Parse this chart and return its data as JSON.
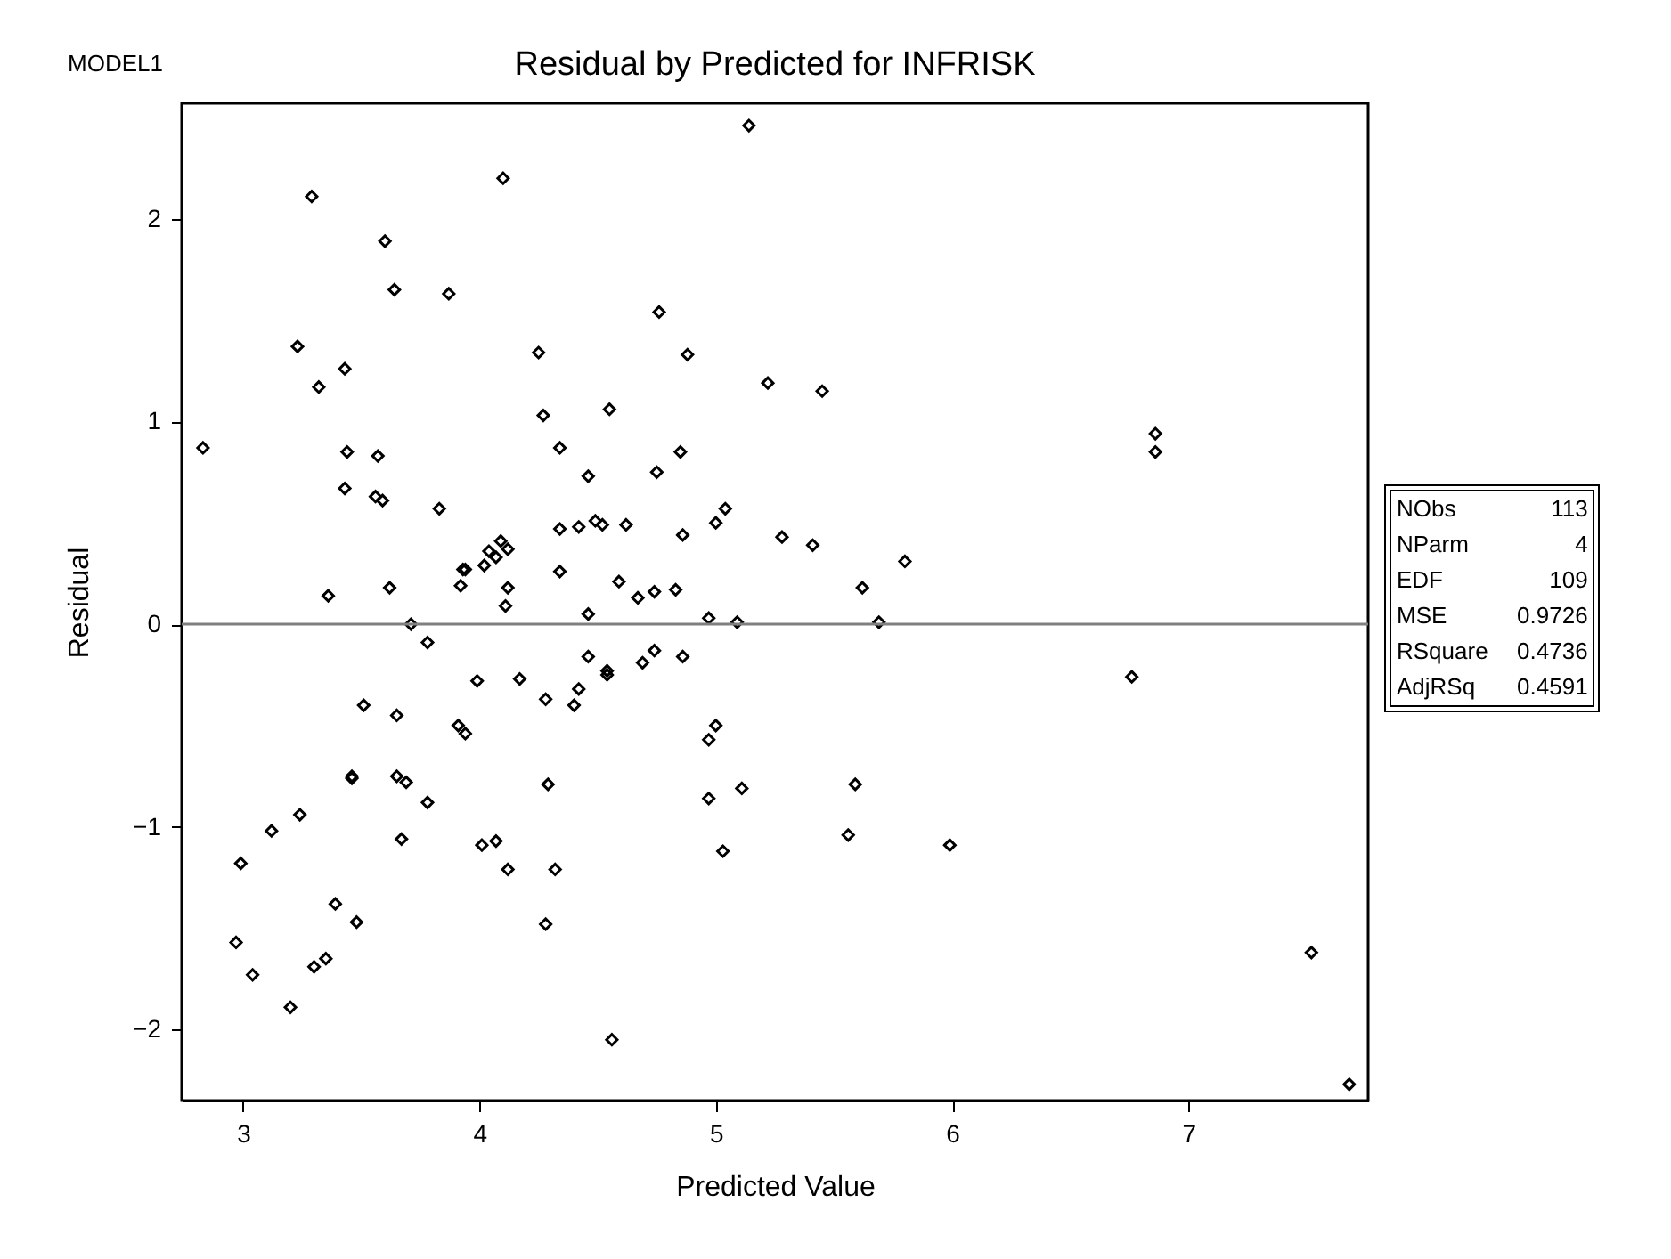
{
  "chart_data": {
    "type": "scatter",
    "title": "Residual by Predicted for INFRISK",
    "xlabel": "Predicted Value",
    "ylabel": "Residual",
    "annotations": [
      "MODEL1",
      "NObs 113",
      "NParm 4",
      "EDF 109",
      "MSE 0.9726",
      "RSquare 0.4736",
      "AdjRSq 0.4591"
    ],
    "xlim": [
      2.74,
      7.76
    ],
    "xticks": [
      3,
      4,
      5,
      6,
      7
    ],
    "ylim": [
      -2.35,
      2.57
    ],
    "yticks": [
      -2,
      -1,
      0,
      1,
      2
    ],
    "marker": "diamond",
    "ref_lines": [
      {
        "axis": "y",
        "value": 0,
        "color": "#808080"
      }
    ],
    "series": [
      {
        "color": "#000000",
        "x": [
          5.14,
          4.1,
          3.29,
          3.6,
          3.64,
          3.87,
          4.76,
          3.23,
          3.43,
          3.32,
          4.25,
          4.88,
          5.22,
          4.27,
          4.55,
          2.83,
          3.44,
          3.57,
          4.34,
          4.85,
          3.43,
          3.56,
          3.59,
          4.46,
          4.75,
          3.83,
          5.0,
          5.04,
          4.34,
          4.42,
          4.49,
          4.52,
          4.62,
          4.86,
          5.28,
          5.41,
          5.8,
          5.45,
          6.86,
          6.86,
          4.09,
          4.04,
          4.12,
          4.07,
          4.02,
          3.93,
          3.94,
          3.92,
          4.34,
          3.36,
          3.62,
          4.12,
          4.11,
          4.59,
          4.67,
          4.74,
          4.83,
          3.71,
          4.46,
          4.97,
          5.09,
          5.62,
          5.69,
          3.78,
          3.99,
          4.17,
          4.46,
          4.54,
          4.54,
          4.69,
          4.74,
          4.86,
          4.28,
          4.42,
          4.4,
          3.51,
          3.65,
          3.91,
          3.94,
          5.0,
          4.97,
          6.76,
          3.46,
          3.46,
          3.65,
          3.69,
          3.78,
          4.29,
          4.97,
          5.11,
          5.59,
          5.56,
          5.99,
          3.24,
          3.12,
          3.67,
          4.01,
          4.07,
          5.03,
          2.99,
          4.12,
          4.32,
          3.39,
          3.48,
          4.28,
          2.97,
          3.35,
          3.3,
          3.04,
          3.2,
          4.56,
          7.52,
          7.68
        ],
        "values": [
          2.46,
          2.2,
          2.11,
          1.89,
          1.65,
          1.63,
          1.54,
          1.37,
          1.26,
          1.17,
          1.34,
          1.33,
          1.19,
          1.03,
          1.06,
          0.87,
          0.85,
          0.83,
          0.87,
          0.85,
          0.67,
          0.63,
          0.61,
          0.73,
          0.75,
          0.57,
          0.5,
          0.57,
          0.47,
          0.48,
          0.51,
          0.49,
          0.49,
          0.44,
          0.43,
          0.39,
          0.31,
          1.15,
          0.94,
          0.85,
          0.41,
          0.36,
          0.37,
          0.33,
          0.29,
          0.27,
          0.27,
          0.19,
          0.26,
          0.14,
          0.18,
          0.18,
          0.09,
          0.21,
          0.13,
          0.16,
          0.17,
          0.0,
          0.05,
          0.03,
          0.01,
          0.18,
          0.01,
          -0.09,
          -0.28,
          -0.27,
          -0.16,
          -0.23,
          -0.25,
          -0.19,
          -0.13,
          -0.16,
          -0.37,
          -0.32,
          -0.4,
          -0.4,
          -0.45,
          -0.5,
          -0.54,
          -0.5,
          -0.57,
          -0.26,
          -0.75,
          -0.76,
          -0.75,
          -0.78,
          -0.88,
          -0.79,
          -0.86,
          -0.81,
          -0.79,
          -1.04,
          -1.09,
          -0.94,
          -1.02,
          -1.06,
          -1.09,
          -1.07,
          -1.12,
          -1.18,
          -1.21,
          -1.21,
          -1.38,
          -1.47,
          -1.48,
          -1.57,
          -1.65,
          -1.69,
          -1.73,
          -1.89,
          -2.05,
          -1.62,
          -2.27
        ]
      }
    ]
  }
}
